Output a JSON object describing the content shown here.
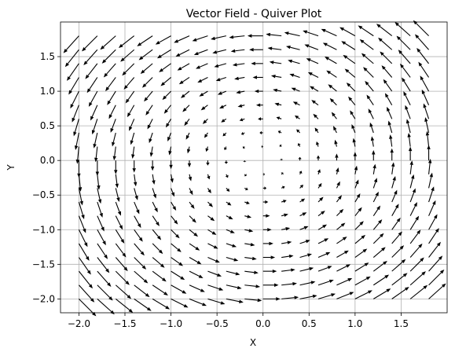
{
  "chart_data": {
    "type": "quiver",
    "title": "Vector Field - Quiver Plot",
    "xlabel": "X",
    "ylabel": "Y",
    "xlim": [
      -2.2,
      2.0
    ],
    "ylim": [
      -2.2,
      2.0
    ],
    "x_ticks": [
      -2.0,
      -1.5,
      -1.0,
      -0.5,
      0.0,
      0.5,
      1.0,
      1.5
    ],
    "y_ticks": [
      -2.0,
      -1.5,
      -1.0,
      -0.5,
      0.0,
      0.5,
      1.0,
      1.5
    ],
    "x_tick_labels": [
      "−2.0",
      "−1.5",
      "−1.0",
      "−0.5",
      "0.0",
      "0.5",
      "1.0",
      "1.5"
    ],
    "y_tick_labels": [
      "−2.0",
      "−1.5",
      "−1.0",
      "−0.5",
      "0.0",
      "0.5",
      "1.0",
      "1.5"
    ],
    "grid": true,
    "field": {
      "u": "-y",
      "v": "x",
      "x_start": -2.0,
      "x_end": 1.8,
      "x_count": 20,
      "y_start": -2.0,
      "y_end": 1.8,
      "y_count": 20
    },
    "arrow_color": "#000000"
  }
}
